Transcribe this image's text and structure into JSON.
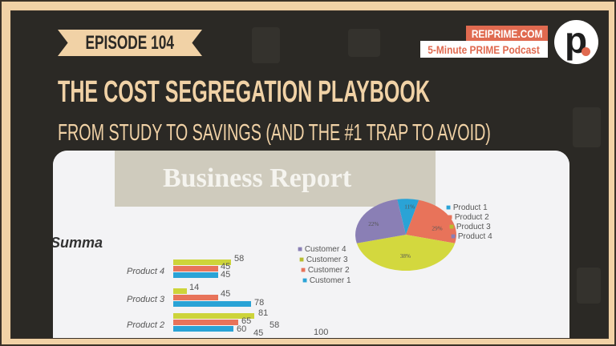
{
  "episode": {
    "label": "EPISODE 104"
  },
  "title": "THE COST SEGREGATION PLAYBOOK",
  "subtitle": "FROM STUDY TO SAVINGS (AND THE #1 TRAP TO AVOID)",
  "brand": {
    "site": "REIPRIME.COM",
    "podcast": "5-Minute PRIME Podcast",
    "logo_letter": "p."
  },
  "colors": {
    "background": "#2b2925",
    "accent_beige": "#f1d2a6",
    "brand_orange": "#e06a50"
  },
  "photo": {
    "report_title": "Business Report",
    "summary_text": "Summa",
    "bar_chart": {
      "categories": [
        "Product 4",
        "Product 3",
        "Product 2"
      ],
      "legend": [
        "Customer 4",
        "Customer 3",
        "Customer 2",
        "Customer 1"
      ],
      "value_labels": [
        "58",
        "45",
        "45",
        "14",
        "45",
        "78",
        "81",
        "65",
        "60",
        "58",
        "45"
      ],
      "axis_label": "100"
    },
    "pie_chart": {
      "legend": [
        "Product 1",
        "Product 2",
        "Product 3",
        "Product 4"
      ],
      "slice_labels": [
        "11%",
        "29%",
        "38%",
        "22%"
      ]
    }
  }
}
